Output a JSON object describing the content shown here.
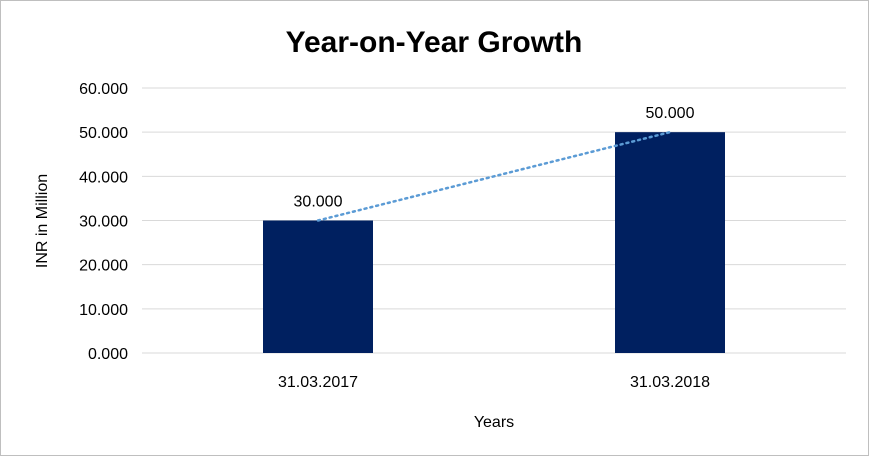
{
  "chart_data": {
    "type": "bar",
    "title": "Year-on-Year Growth",
    "xlabel": "Years",
    "ylabel": "INR in Million",
    "categories": [
      "31.03.2017",
      "31.03.2018"
    ],
    "values": [
      30,
      50
    ],
    "data_labels": [
      "30.000",
      "50.000"
    ],
    "ylim": [
      0,
      60
    ],
    "y_ticks": [
      {
        "value": 0,
        "label": "0.000"
      },
      {
        "value": 10,
        "label": "10.000"
      },
      {
        "value": 20,
        "label": "20.000"
      },
      {
        "value": 30,
        "label": "30.000"
      },
      {
        "value": 40,
        "label": "40.000"
      },
      {
        "value": 50,
        "label": "50.000"
      },
      {
        "value": 60,
        "label": "60.000"
      }
    ],
    "grid": true,
    "legend": "none",
    "trendline": "linear dotted",
    "colors": {
      "bar": "#002060",
      "trendline": "#5b9bd5",
      "grid": "#d9d9d9"
    }
  }
}
